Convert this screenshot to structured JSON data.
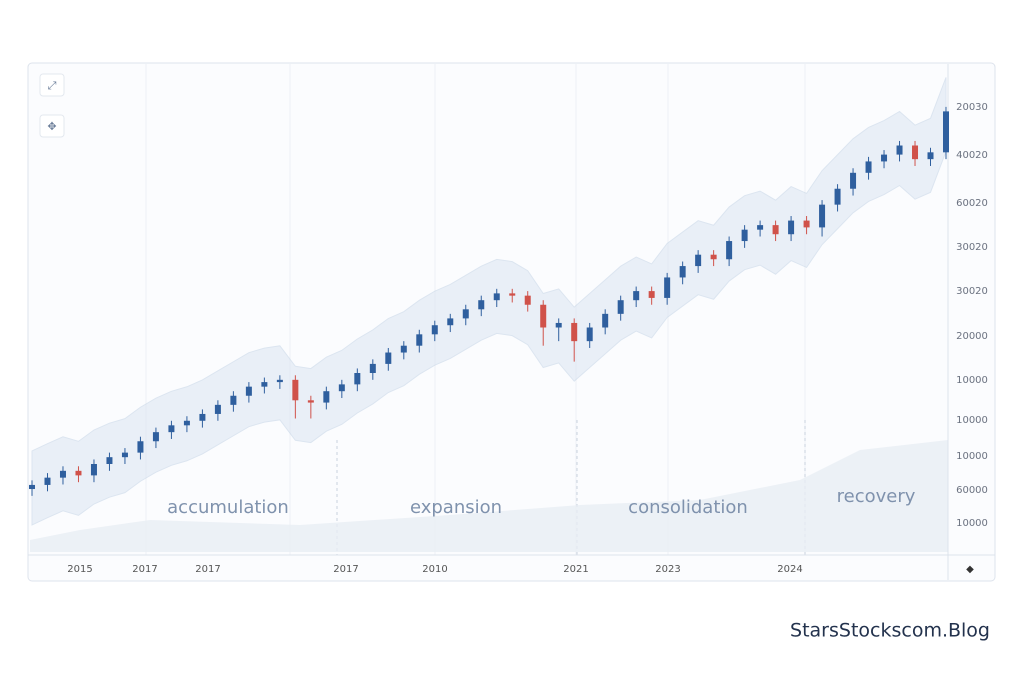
{
  "chart_data": {
    "type": "candlestick",
    "open": [
      14.5,
      15.4,
      17,
      18.5,
      17.5,
      20,
      21.5,
      22.5,
      25,
      27,
      28.5,
      29.5,
      31,
      33,
      35,
      37,
      38,
      38.5,
      34,
      33.5,
      36,
      37.5,
      40,
      42,
      44.5,
      46,
      48.5,
      50.5,
      52,
      54,
      56,
      57.5,
      57,
      55,
      50,
      51,
      47,
      50,
      53,
      56,
      58,
      56.5,
      61,
      63.5,
      66,
      65,
      69,
      71.5,
      72.5,
      70.5,
      73.5,
      72,
      77,
      80.5,
      84,
      86.5,
      88,
      90,
      87,
      88.5
    ],
    "high": [
      16.4,
      18,
      19.5,
      19.5,
      21,
      22.5,
      23.5,
      26,
      28,
      29.5,
      30.5,
      32,
      34,
      36,
      38,
      39,
      39.5,
      39.5,
      35,
      37,
      38.5,
      41,
      43,
      45.5,
      47,
      49.5,
      51.5,
      53,
      55,
      57,
      58.5,
      58.5,
      58,
      56,
      52,
      52,
      51,
      54,
      57,
      59,
      59,
      62,
      64.5,
      67,
      67,
      70,
      72.5,
      73.5,
      73.5,
      74.5,
      74.5,
      78,
      81.5,
      85,
      87.5,
      89,
      91,
      91,
      89.5,
      98.5
    ],
    "low": [
      13,
      14,
      15.5,
      16,
      16,
      18.5,
      20,
      21,
      23.5,
      25.5,
      27,
      28,
      29.5,
      31.5,
      33.5,
      35.5,
      36.5,
      30,
      30,
      32,
      34.5,
      36,
      38.5,
      40.5,
      43,
      44.5,
      47,
      49,
      50.5,
      52.5,
      54.5,
      55.5,
      53.5,
      46,
      47,
      42.5,
      45.5,
      48.5,
      51.5,
      54.5,
      55,
      55,
      59.5,
      62,
      63.5,
      63.5,
      67.5,
      70,
      69,
      69,
      70.5,
      70,
      75.5,
      79,
      82.5,
      85,
      86.5,
      85.5,
      85.5,
      87
    ],
    "close": [
      15.4,
      17,
      18.5,
      17.5,
      20,
      21.5,
      22.5,
      25,
      27,
      28.5,
      29.5,
      31,
      33,
      35,
      37,
      38,
      38.5,
      34,
      33.5,
      36,
      37.5,
      40,
      42,
      44.5,
      46,
      48.5,
      50.5,
      52,
      54,
      56,
      57.5,
      57,
      55,
      50,
      51,
      47,
      50,
      53,
      56,
      58,
      56.5,
      61,
      63.5,
      66,
      65,
      69,
      71.5,
      72.5,
      70.5,
      73.5,
      72,
      77,
      80.5,
      84,
      86.5,
      88,
      90,
      87,
      88.5,
      97.5
    ],
    "up_color": "#2f5f9e",
    "down_color": "#d0524a",
    "ylim": [
      0,
      100
    ],
    "y_axis_labels": [
      "20030",
      "40020",
      "60020",
      "30020",
      "30020",
      "20000",
      "10000",
      "10000",
      "10000",
      "60000",
      "10000"
    ],
    "x_labels": [
      "2015",
      "2017",
      "2017",
      "2017",
      "2010",
      "2021",
      "2023",
      "2024"
    ],
    "annotations": [
      "accumulation",
      "expansion",
      "consolidation",
      "recovery"
    ],
    "watermark": "StarsStockscom.Blog"
  }
}
